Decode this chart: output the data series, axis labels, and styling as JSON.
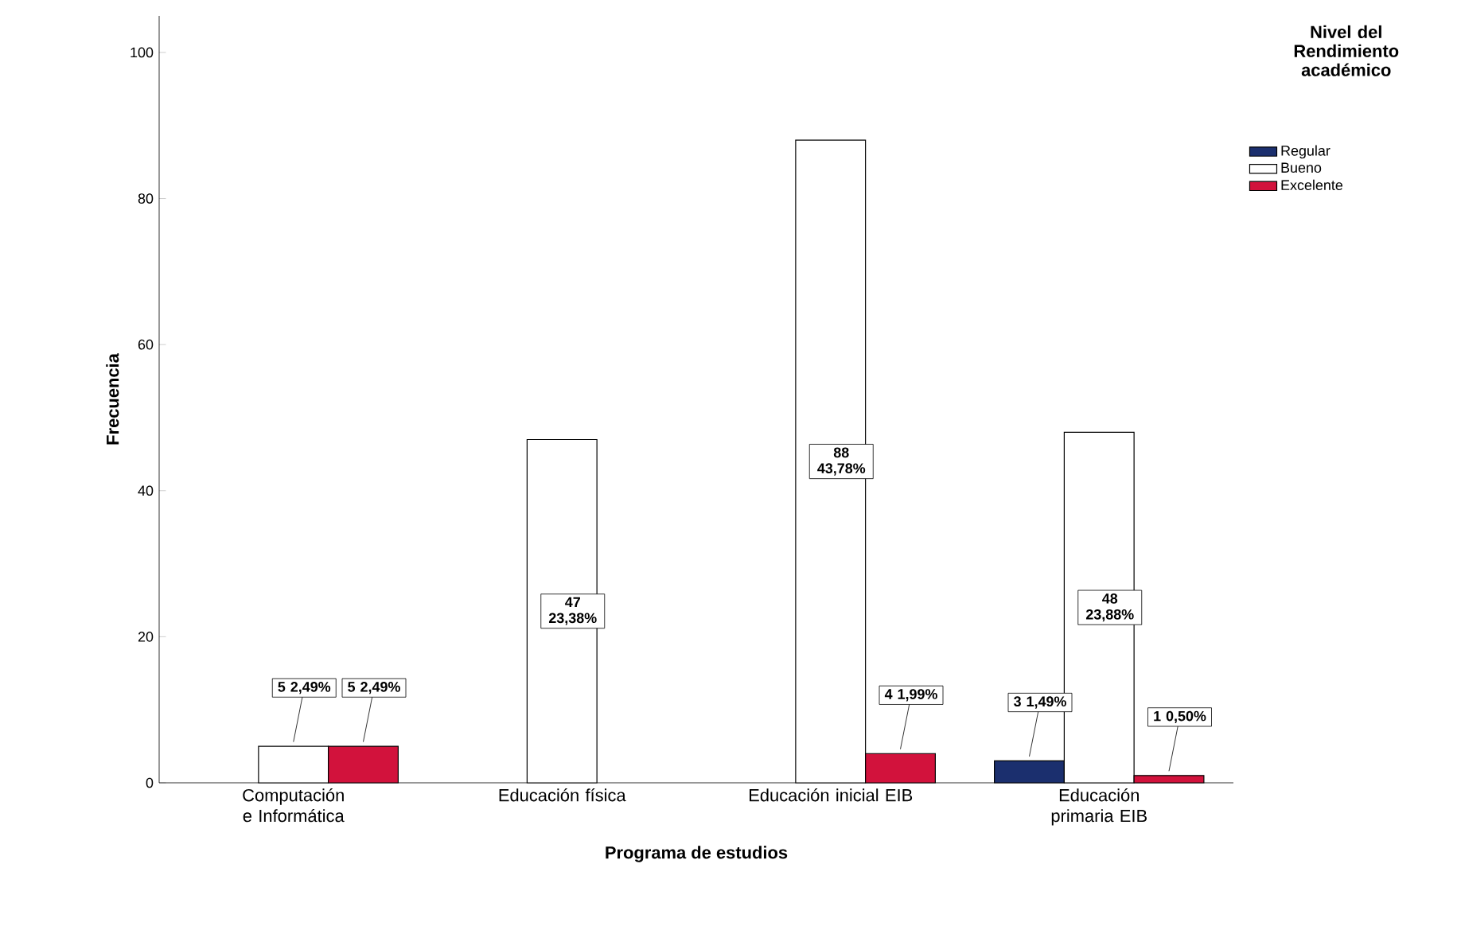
{
  "chart_data": {
    "type": "bar",
    "xlabel": "Programa de estudios",
    "ylabel": "Frecuencia",
    "legend_title": "Nivel del Rendimiento académico",
    "categories": [
      "Computación e Informática",
      "Educación física",
      "Educación inicial EIB",
      "Educación primaria EIB"
    ],
    "series": [
      {
        "name": "Regular",
        "color": "#1b2f6e",
        "values": [
          null,
          null,
          null,
          3
        ],
        "value_labels": [
          null,
          null,
          null,
          "3 1,49%"
        ]
      },
      {
        "name": "Bueno",
        "color": "#ffffff",
        "values": [
          5,
          47,
          88,
          48
        ],
        "value_labels": [
          "5 2,49%",
          "47 23,38%",
          "88 43,78%",
          "48 23,88%"
        ]
      },
      {
        "name": "Excelente",
        "color": "#d2123c",
        "values": [
          5,
          null,
          4,
          1
        ],
        "value_labels": [
          "5 2,49%",
          null,
          "4 1,99%",
          "1 0,50%"
        ]
      }
    ],
    "ylim": [
      0,
      105
    ],
    "yticks": [
      0,
      20,
      40,
      60,
      80,
      100
    ],
    "grid": false,
    "legend": "top right"
  }
}
